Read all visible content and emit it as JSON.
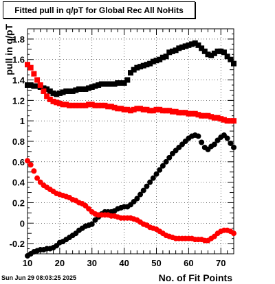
{
  "chart_data": {
    "type": "scatter",
    "title": "Fitted pull in q/pT for Global Rec All NoHits",
    "xlabel": "No. of Fit Points",
    "ylabel": "pull in q/pT",
    "xlim": [
      10,
      74
    ],
    "ylim": [
      -0.3,
      1.9
    ],
    "x_ticks": [
      10,
      20,
      30,
      40,
      50,
      60,
      70
    ],
    "y_ticks": [
      -0.2,
      0,
      0.2,
      0.4,
      0.6,
      0.8,
      1,
      1.2,
      1.4,
      1.6,
      1.8
    ],
    "grid": true,
    "series": [
      {
        "marker": "square",
        "color": "#000000",
        "points": [
          [
            10,
            1.35
          ],
          [
            11,
            1.35
          ],
          [
            12,
            1.34
          ],
          [
            13,
            1.34
          ],
          [
            14,
            1.33
          ],
          [
            15,
            1.32
          ],
          [
            16,
            1.31
          ],
          [
            17,
            1.29
          ],
          [
            18,
            1.27
          ],
          [
            19,
            1.26
          ],
          [
            20,
            1.27
          ],
          [
            21,
            1.28
          ],
          [
            22,
            1.29
          ],
          [
            23,
            1.29
          ],
          [
            24,
            1.29
          ],
          [
            25,
            1.3
          ],
          [
            26,
            1.31
          ],
          [
            27,
            1.31
          ],
          [
            28,
            1.31
          ],
          [
            29,
            1.32
          ],
          [
            30,
            1.33
          ],
          [
            31,
            1.34
          ],
          [
            32,
            1.35
          ],
          [
            33,
            1.36
          ],
          [
            34,
            1.36
          ],
          [
            35,
            1.36
          ],
          [
            36,
            1.36
          ],
          [
            37,
            1.36
          ],
          [
            38,
            1.37
          ],
          [
            39,
            1.37
          ],
          [
            40,
            1.37
          ],
          [
            41,
            1.4
          ],
          [
            42,
            1.47
          ],
          [
            43,
            1.5
          ],
          [
            44,
            1.52
          ],
          [
            45,
            1.53
          ],
          [
            46,
            1.54
          ],
          [
            47,
            1.55
          ],
          [
            48,
            1.56
          ],
          [
            49,
            1.58
          ],
          [
            50,
            1.59
          ],
          [
            51,
            1.6
          ],
          [
            52,
            1.62
          ],
          [
            53,
            1.63
          ],
          [
            54,
            1.67
          ],
          [
            55,
            1.68
          ],
          [
            56,
            1.69
          ],
          [
            57,
            1.71
          ],
          [
            58,
            1.72
          ],
          [
            59,
            1.73
          ],
          [
            60,
            1.74
          ],
          [
            61,
            1.75
          ],
          [
            62,
            1.76
          ],
          [
            63,
            1.74
          ],
          [
            64,
            1.71
          ],
          [
            65,
            1.68
          ],
          [
            66,
            1.65
          ],
          [
            67,
            1.64
          ],
          [
            68,
            1.66
          ],
          [
            69,
            1.68
          ],
          [
            70,
            1.68
          ],
          [
            71,
            1.67
          ],
          [
            72,
            1.63
          ],
          [
            73,
            1.6
          ],
          [
            74,
            1.56
          ]
        ]
      },
      {
        "marker": "square",
        "color": "#ff0000",
        "points": [
          [
            10,
            1.55
          ],
          [
            11,
            1.52
          ],
          [
            12,
            1.46
          ],
          [
            13,
            1.4
          ],
          [
            14,
            1.35
          ],
          [
            15,
            1.29
          ],
          [
            16,
            1.24
          ],
          [
            17,
            1.21
          ],
          [
            18,
            1.19
          ],
          [
            19,
            1.18
          ],
          [
            20,
            1.17
          ],
          [
            21,
            1.16
          ],
          [
            22,
            1.16
          ],
          [
            23,
            1.15
          ],
          [
            24,
            1.15
          ],
          [
            25,
            1.15
          ],
          [
            26,
            1.15
          ],
          [
            27,
            1.15
          ],
          [
            28,
            1.15
          ],
          [
            29,
            1.16
          ],
          [
            30,
            1.16
          ],
          [
            31,
            1.15
          ],
          [
            32,
            1.15
          ],
          [
            33,
            1.15
          ],
          [
            34,
            1.15
          ],
          [
            35,
            1.14
          ],
          [
            36,
            1.14
          ],
          [
            37,
            1.13
          ],
          [
            38,
            1.12
          ],
          [
            39,
            1.12
          ],
          [
            40,
            1.11
          ],
          [
            41,
            1.11
          ],
          [
            42,
            1.1
          ],
          [
            43,
            1.11
          ],
          [
            44,
            1.12
          ],
          [
            45,
            1.12
          ],
          [
            46,
            1.11
          ],
          [
            47,
            1.11
          ],
          [
            48,
            1.1
          ],
          [
            49,
            1.1
          ],
          [
            50,
            1.11
          ],
          [
            51,
            1.11
          ],
          [
            52,
            1.1
          ],
          [
            53,
            1.1
          ],
          [
            54,
            1.1
          ],
          [
            55,
            1.09
          ],
          [
            56,
            1.09
          ],
          [
            57,
            1.08
          ],
          [
            58,
            1.08
          ],
          [
            59,
            1.08
          ],
          [
            60,
            1.07
          ],
          [
            61,
            1.07
          ],
          [
            62,
            1.07
          ],
          [
            63,
            1.06
          ],
          [
            64,
            1.05
          ],
          [
            65,
            1.05
          ],
          [
            66,
            1.05
          ],
          [
            67,
            1.04
          ],
          [
            68,
            1.03
          ],
          [
            69,
            1.03
          ],
          [
            70,
            1.02
          ],
          [
            71,
            1.01
          ],
          [
            72,
            1.0
          ],
          [
            73,
            1.0
          ],
          [
            74,
            1.0
          ]
        ]
      },
      {
        "marker": "circle",
        "color": "#000000",
        "points": [
          [
            10,
            -0.32
          ],
          [
            11,
            -0.3
          ],
          [
            12,
            -0.28
          ],
          [
            13,
            -0.27
          ],
          [
            14,
            -0.26
          ],
          [
            15,
            -0.26
          ],
          [
            16,
            -0.25
          ],
          [
            17,
            -0.25
          ],
          [
            18,
            -0.24
          ],
          [
            19,
            -0.22
          ],
          [
            20,
            -0.19
          ],
          [
            21,
            -0.18
          ],
          [
            22,
            -0.16
          ],
          [
            23,
            -0.14
          ],
          [
            24,
            -0.12
          ],
          [
            25,
            -0.1
          ],
          [
            26,
            -0.07
          ],
          [
            27,
            -0.05
          ],
          [
            28,
            -0.03
          ],
          [
            29,
            -0.02
          ],
          [
            30,
            -0.01
          ],
          [
            31,
            0.03
          ],
          [
            32,
            0.06
          ],
          [
            33,
            0.09
          ],
          [
            34,
            0.11
          ],
          [
            35,
            0.11
          ],
          [
            36,
            0.11
          ],
          [
            37,
            0.12
          ],
          [
            38,
            0.14
          ],
          [
            39,
            0.15
          ],
          [
            40,
            0.16
          ],
          [
            41,
            0.16
          ],
          [
            42,
            0.18
          ],
          [
            43,
            0.21
          ],
          [
            44,
            0.24
          ],
          [
            45,
            0.28
          ],
          [
            46,
            0.32
          ],
          [
            47,
            0.36
          ],
          [
            48,
            0.4
          ],
          [
            49,
            0.44
          ],
          [
            50,
            0.48
          ],
          [
            51,
            0.52
          ],
          [
            52,
            0.56
          ],
          [
            53,
            0.6
          ],
          [
            54,
            0.64
          ],
          [
            55,
            0.68
          ],
          [
            56,
            0.71
          ],
          [
            57,
            0.74
          ],
          [
            58,
            0.77
          ],
          [
            59,
            0.8
          ],
          [
            60,
            0.83
          ],
          [
            61,
            0.85
          ],
          [
            62,
            0.86
          ],
          [
            63,
            0.85
          ],
          [
            64,
            0.79
          ],
          [
            65,
            0.74
          ],
          [
            66,
            0.72
          ],
          [
            67,
            0.75
          ],
          [
            68,
            0.77
          ],
          [
            69,
            0.81
          ],
          [
            70,
            0.84
          ],
          [
            71,
            0.86
          ],
          [
            72,
            0.83
          ],
          [
            73,
            0.78
          ],
          [
            74,
            0.74
          ]
        ]
      },
      {
        "marker": "circle",
        "color": "#ff0000",
        "points": [
          [
            10,
            0.61
          ],
          [
            11,
            0.57
          ],
          [
            12,
            0.51
          ],
          [
            13,
            0.44
          ],
          [
            14,
            0.4
          ],
          [
            15,
            0.37
          ],
          [
            16,
            0.35
          ],
          [
            17,
            0.33
          ],
          [
            18,
            0.31
          ],
          [
            19,
            0.29
          ],
          [
            20,
            0.28
          ],
          [
            21,
            0.27
          ],
          [
            22,
            0.26
          ],
          [
            23,
            0.25
          ],
          [
            24,
            0.23
          ],
          [
            25,
            0.22
          ],
          [
            26,
            0.2
          ],
          [
            27,
            0.19
          ],
          [
            28,
            0.17
          ],
          [
            29,
            0.14
          ],
          [
            30,
            0.11
          ],
          [
            31,
            0.09
          ],
          [
            32,
            0.08
          ],
          [
            33,
            0.08
          ],
          [
            34,
            0.08
          ],
          [
            35,
            0.08
          ],
          [
            36,
            0.07
          ],
          [
            37,
            0.07
          ],
          [
            38,
            0.06
          ],
          [
            39,
            0.05
          ],
          [
            40,
            0.05
          ],
          [
            41,
            0.05
          ],
          [
            42,
            0.05
          ],
          [
            43,
            0.04
          ],
          [
            44,
            0.03
          ],
          [
            45,
            0.01
          ],
          [
            46,
            -0.01
          ],
          [
            47,
            -0.02
          ],
          [
            48,
            -0.04
          ],
          [
            49,
            -0.05
          ],
          [
            50,
            -0.06
          ],
          [
            51,
            -0.08
          ],
          [
            52,
            -0.1
          ],
          [
            53,
            -0.12
          ],
          [
            54,
            -0.13
          ],
          [
            55,
            -0.14
          ],
          [
            56,
            -0.15
          ],
          [
            57,
            -0.15
          ],
          [
            58,
            -0.15
          ],
          [
            59,
            -0.15
          ],
          [
            60,
            -0.15
          ],
          [
            61,
            -0.15
          ],
          [
            62,
            -0.16
          ],
          [
            63,
            -0.16
          ],
          [
            64,
            -0.16
          ],
          [
            65,
            -0.17
          ],
          [
            66,
            -0.17
          ],
          [
            67,
            -0.15
          ],
          [
            68,
            -0.13
          ],
          [
            69,
            -0.1
          ],
          [
            70,
            -0.08
          ],
          [
            71,
            -0.07
          ],
          [
            72,
            -0.07
          ],
          [
            73,
            -0.08
          ],
          [
            74,
            -0.1
          ]
        ]
      }
    ]
  },
  "footer": {
    "datestamp": "Sun Jun 29 08:03:25 2025"
  }
}
